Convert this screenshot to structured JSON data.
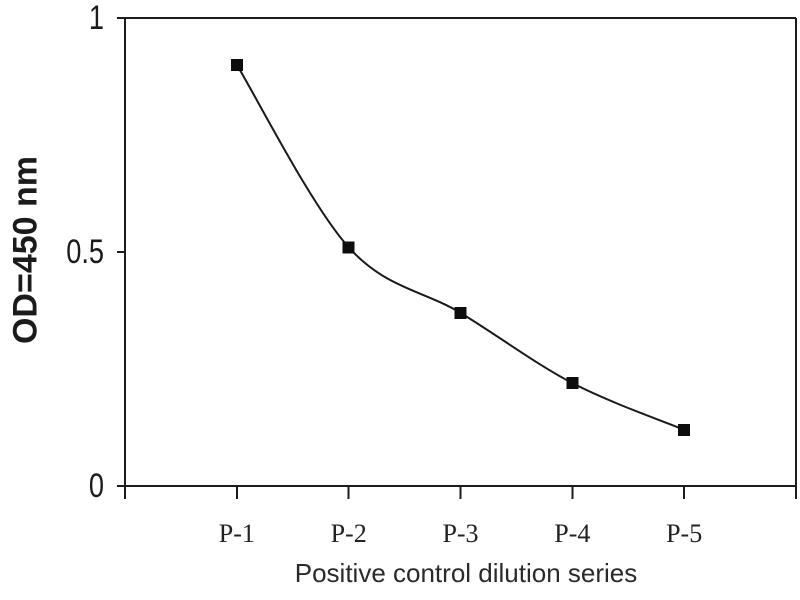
{
  "figure": {
    "background": "#ffffff",
    "text_color": "#1b1b1b",
    "axis_color": "#1c1c1c"
  },
  "chart_data": {
    "type": "line",
    "title": "",
    "xlabel": "Positive control dilution series",
    "ylabel": "OD=450 nm",
    "categories": [
      "P-1",
      "P-2",
      "P-3",
      "P-4",
      "P-5"
    ],
    "values": [
      0.9,
      0.51,
      0.37,
      0.22,
      0.12
    ],
    "ylim": [
      0,
      1
    ],
    "yticks": [
      0,
      0.5,
      1
    ],
    "ytick_labels": [
      "0",
      "0.5",
      "1"
    ],
    "grid": false,
    "legend": "none",
    "plot_border": true,
    "smooth": true,
    "line_color": "#1a1a1a",
    "marker": "square",
    "marker_color": "#0d0d0d"
  }
}
